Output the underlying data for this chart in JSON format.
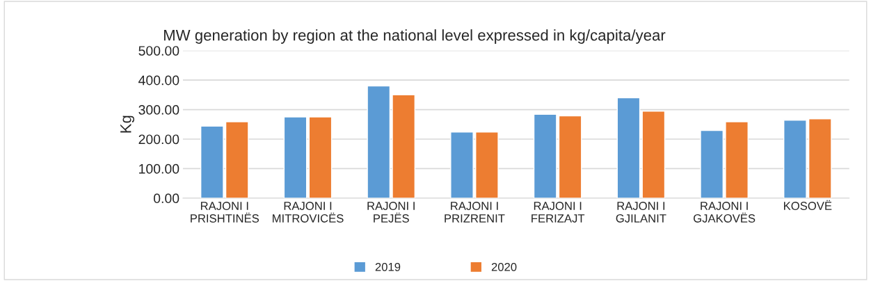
{
  "chart_data": {
    "type": "bar",
    "title": "MW generation by region at the national level expressed in kg/capita/year",
    "ylabel": "Kg",
    "categories": [
      "RAJONI I\nPRISHTINËS",
      "RAJONI I\nMITROVICËS",
      "RAJONI I\nPEJËS",
      "RAJONI I\nPRIZRENIT",
      "RAJONI I\nFERIZAJT",
      "RAJONI I\nGJILANIT",
      "RAJONI I\nGJAKOVËS",
      "KOSOVË"
    ],
    "series": [
      {
        "name": "2019",
        "color": "#5b9bd5",
        "values": [
          244,
          275,
          380,
          224,
          284,
          340,
          229,
          264
        ]
      },
      {
        "name": "2020",
        "color": "#ed7d31",
        "values": [
          259,
          275,
          350,
          224,
          279,
          295,
          259,
          269
        ]
      }
    ],
    "ylim": [
      0,
      500
    ],
    "yticks": [
      {
        "value": 0,
        "label": "0.00"
      },
      {
        "value": 100,
        "label": "100.00"
      },
      {
        "value": 200,
        "label": "200.00"
      },
      {
        "value": 300,
        "label": "300.00"
      },
      {
        "value": 400,
        "label": "400.00"
      },
      {
        "value": 500,
        "label": "500.00"
      }
    ],
    "grid": "y",
    "legend": "bottom"
  }
}
